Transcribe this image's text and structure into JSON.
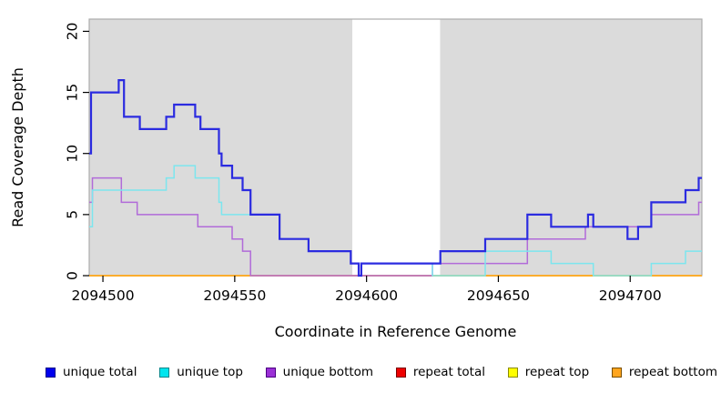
{
  "chart_data": {
    "type": "line",
    "step": true,
    "title": "",
    "xlabel": "Coordinate in Reference Genome",
    "ylabel": "Read Coverage Depth",
    "xlim": [
      2094494.8,
      2094727.2
    ],
    "ylim": [
      0,
      21
    ],
    "x_ticks": [
      2094500,
      2094550,
      2094600,
      2094650,
      2094700
    ],
    "y_ticks": [
      0,
      5,
      10,
      15,
      20
    ],
    "grid": false,
    "panel_background": "#DBDBDB",
    "panel_border_color": "#ACACAC",
    "highlight_region": {
      "start": 2094594.6,
      "end": 2094627.9,
      "color": "#FFFFFF"
    },
    "legend_position": "bottom",
    "draw_order": [
      3,
      4,
      5,
      2,
      1,
      0
    ],
    "series": [
      {
        "label": "unique total",
        "line_color": "#2B2BE0",
        "line_width": 2.2,
        "legend_fill": "#0000EE",
        "legend_border": "#00008B",
        "points": [
          [
            2094494.8,
            10
          ],
          [
            2094495.5,
            15
          ],
          [
            2094506,
            16
          ],
          [
            2094508,
            13
          ],
          [
            2094514,
            12
          ],
          [
            2094524,
            13
          ],
          [
            2094527,
            14
          ],
          [
            2094535,
            13
          ],
          [
            2094537,
            12
          ],
          [
            2094544,
            10
          ],
          [
            2094545,
            9
          ],
          [
            2094549,
            8
          ],
          [
            2094553,
            7
          ],
          [
            2094556,
            5
          ],
          [
            2094567,
            3
          ],
          [
            2094578,
            2
          ],
          [
            2094594,
            1
          ],
          [
            2094597,
            0
          ],
          [
            2094598,
            1
          ],
          [
            2094628,
            2
          ],
          [
            2094645,
            3
          ],
          [
            2094661,
            5
          ],
          [
            2094670,
            4
          ],
          [
            2094684,
            5
          ],
          [
            2094686,
            4
          ],
          [
            2094699,
            3
          ],
          [
            2094703,
            4
          ],
          [
            2094708,
            6
          ],
          [
            2094721,
            7
          ],
          [
            2094726,
            8
          ],
          [
            2094727.2,
            8
          ]
        ]
      },
      {
        "label": "unique top",
        "line_color": "#7CE6EE",
        "line_width": 1.5,
        "legend_fill": "#00E5EE",
        "legend_border": "#00868B",
        "points": [
          [
            2094494.8,
            4
          ],
          [
            2094496,
            7
          ],
          [
            2094524,
            8
          ],
          [
            2094527,
            9
          ],
          [
            2094535,
            8
          ],
          [
            2094544,
            6
          ],
          [
            2094545,
            5
          ],
          [
            2094567,
            3
          ],
          [
            2094578,
            2
          ],
          [
            2094594,
            1
          ],
          [
            2094597,
            0
          ],
          [
            2094598,
            1
          ],
          [
            2094625,
            0
          ],
          [
            2094645,
            2
          ],
          [
            2094670,
            1
          ],
          [
            2094686,
            0
          ],
          [
            2094708,
            1
          ],
          [
            2094721,
            2
          ],
          [
            2094727.2,
            2
          ]
        ]
      },
      {
        "label": "unique bottom",
        "line_color": "#B16BD9",
        "line_width": 1.5,
        "legend_fill": "#9B30D6",
        "legend_border": "#4B0082",
        "points": [
          [
            2094494.8,
            6
          ],
          [
            2094496,
            8
          ],
          [
            2094507,
            6
          ],
          [
            2094513,
            5
          ],
          [
            2094536,
            4
          ],
          [
            2094549,
            3
          ],
          [
            2094553,
            2
          ],
          [
            2094556,
            0
          ],
          [
            2094625,
            1
          ],
          [
            2094661,
            3
          ],
          [
            2094683,
            4
          ],
          [
            2094708,
            5
          ],
          [
            2094726,
            6
          ],
          [
            2094727.2,
            6
          ]
        ]
      },
      {
        "label": "repeat total",
        "line_color": "#DD3A3A",
        "line_width": 1.4,
        "legend_fill": "#EE0000",
        "legend_border": "#7A0000",
        "points": [
          [
            2094494.8,
            0
          ],
          [
            2094727.2,
            0
          ]
        ]
      },
      {
        "label": "repeat top",
        "line_color": "#FFFF33",
        "line_width": 1.4,
        "legend_fill": "#FFFF00",
        "legend_border": "#8B8B00",
        "points": [
          [
            2094494.8,
            0
          ],
          [
            2094727.2,
            0
          ]
        ]
      },
      {
        "label": "repeat bottom",
        "line_color": "#FFA41E",
        "line_width": 1.6,
        "legend_fill": "#FFA51E",
        "legend_border": "#7A4E00",
        "points": [
          [
            2094494.8,
            0
          ],
          [
            2094727.2,
            0
          ]
        ]
      }
    ]
  }
}
